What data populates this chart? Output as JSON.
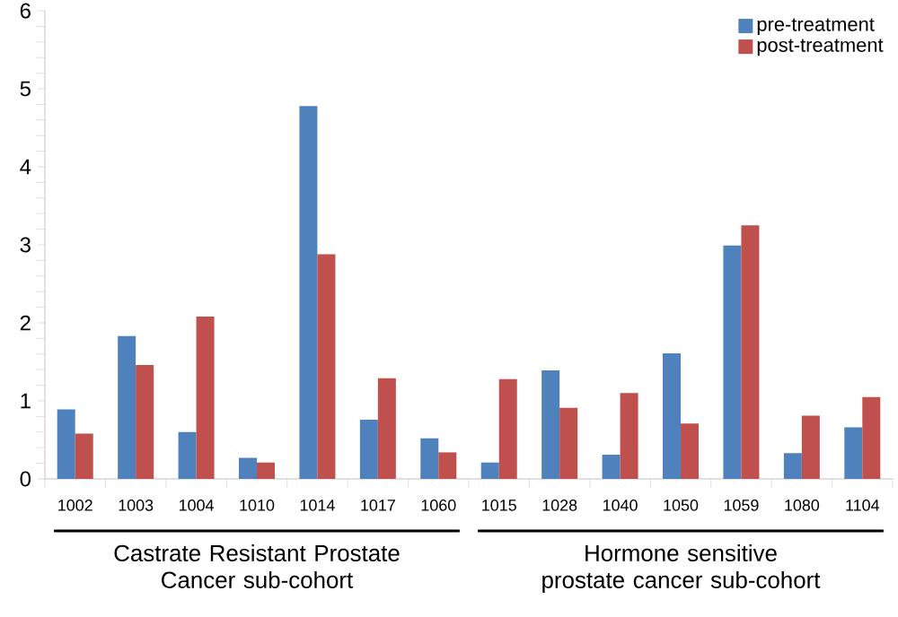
{
  "chart_data": {
    "type": "bar",
    "categories": [
      "1002",
      "1003",
      "1004",
      "1010",
      "1014",
      "1017",
      "1060",
      "1015",
      "1028",
      "1040",
      "1050",
      "1059",
      "1080",
      "1104"
    ],
    "series": [
      {
        "name": "pre-treatment",
        "color": "#4f81bd",
        "values": [
          0.89,
          1.83,
          0.6,
          0.27,
          4.78,
          0.76,
          0.52,
          0.21,
          1.39,
          0.31,
          1.61,
          2.99,
          0.33,
          0.66
        ]
      },
      {
        "name": "post-treatment",
        "color": "#c0504d",
        "values": [
          0.58,
          1.46,
          2.08,
          0.21,
          2.88,
          1.29,
          0.34,
          1.28,
          0.91,
          1.1,
          0.71,
          3.25,
          0.81,
          1.05
        ]
      }
    ],
    "ylim": [
      0,
      6
    ],
    "yticks": [
      0,
      1,
      2,
      3,
      4,
      5,
      6
    ],
    "grid": false,
    "legend": "top right",
    "annotations": [
      "Castrate Resistant Prostate Cancer sub-cohort",
      "Hormone sensitive prostate cancer sub-cohort"
    ]
  }
}
